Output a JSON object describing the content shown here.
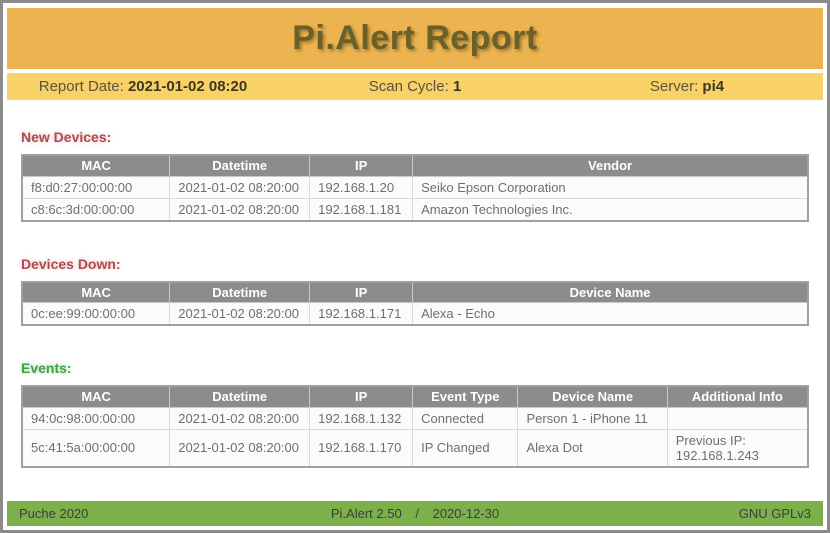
{
  "header": {
    "title": "Pi.Alert Report"
  },
  "info_bar": {
    "report_date_label": "Report Date:",
    "report_date_value": "2021-01-02 08:20",
    "scan_cycle_label": "Scan Cycle:",
    "scan_cycle_value": "1",
    "server_label": "Server:",
    "server_value": "pi4"
  },
  "colors": {
    "header_bg": "#ecb350",
    "info_bar_bg": "#f8d266",
    "table_header_bg": "#8c8c8c",
    "footer_bg": "#7cb04a",
    "alert_red": "#b14a50",
    "event_green": "#43a047"
  },
  "sections": [
    {
      "id": "new-devices",
      "title": "New Devices:",
      "title_color": "#b14a50",
      "title_glow": "rgba(177, 74, 80, 0.35)",
      "col_widths": [
        "18.8%",
        "17.8%",
        "13.1%",
        "50.3%"
      ],
      "headers": [
        "MAC",
        "Datetime",
        "IP",
        "Vendor"
      ],
      "rows": [
        [
          "f8:d0:27:00:00:00",
          "2021-01-02 08:20:00",
          "192.168.1.20",
          "Seiko Epson Corporation"
        ],
        [
          "c8:6c:3d:00:00:00",
          "2021-01-02 08:20:00",
          "192.168.1.181",
          "Amazon Technologies Inc."
        ]
      ]
    },
    {
      "id": "devices-down",
      "title": "Devices Down:",
      "title_color": "#b14a50",
      "title_glow": "rgba(177, 74, 80, 0.35)",
      "col_widths": [
        "18.8%",
        "17.8%",
        "13.1%",
        "50.3%"
      ],
      "headers": [
        "MAC",
        "Datetime",
        "IP",
        "Device Name"
      ],
      "rows": [
        [
          "0c:ee:99:00:00:00",
          "2021-01-02 08:20:00",
          "192.168.1.171",
          "Alexa - Echo"
        ]
      ]
    },
    {
      "id": "events",
      "title": "Events:",
      "title_color": "#43a047",
      "title_glow": "rgba(67, 160, 71, 0.45)",
      "col_widths": [
        "18.8%",
        "17.8%",
        "13.1%",
        "13.4%",
        "19%",
        "17.9%"
      ],
      "headers": [
        "MAC",
        "Datetime",
        "IP",
        "Event Type",
        "Device Name",
        "Additional Info"
      ],
      "rows": [
        [
          "94:0c:98:00:00:00",
          "2021-01-02 08:20:00",
          "192.168.1.132",
          "Connected",
          "Person 1 - iPhone 11",
          ""
        ],
        [
          "5c:41:5a:00:00:00",
          "2021-01-02 08:20:00",
          "192.168.1.170",
          "IP Changed",
          "Alexa Dot",
          "Previous IP: 192.168.1.243"
        ]
      ]
    }
  ],
  "footer": {
    "left": "Puche 2020",
    "center_version": "Pi.Alert 2.50",
    "center_separator": "/",
    "center_date": "2020-12-30",
    "right": "GNU GPLv3"
  }
}
